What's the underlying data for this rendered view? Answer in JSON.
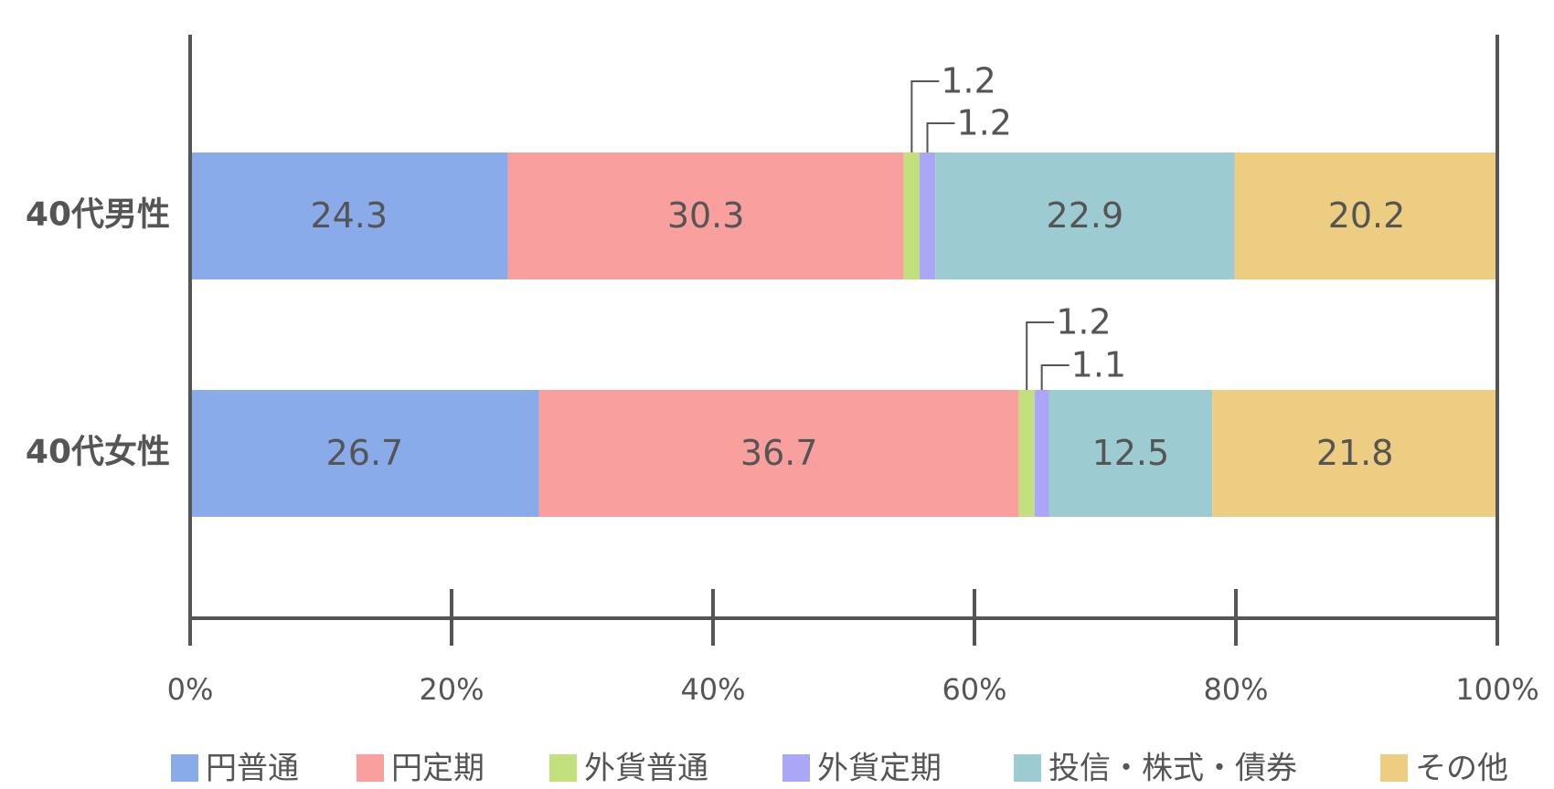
{
  "chart_data": {
    "type": "stacked_barh",
    "categories": [
      "40代男性",
      "40代女性"
    ],
    "series": [
      {
        "name": "円普通",
        "color": "#8aabea",
        "values": [
          24.3,
          26.7
        ]
      },
      {
        "name": "円定期",
        "color": "#f9a09e",
        "values": [
          30.3,
          36.7
        ]
      },
      {
        "name": "外貨普通",
        "color": "#c3e07e",
        "values": [
          1.2,
          1.2
        ]
      },
      {
        "name": "外貨定期",
        "color": "#aba6f5",
        "values": [
          1.2,
          1.1
        ]
      },
      {
        "name": "投信・株式・債券",
        "color": "#9dcbd2",
        "values": [
          22.9,
          12.5
        ]
      },
      {
        "name": "その他",
        "color": "#eccd82",
        "values": [
          20.2,
          21.8
        ]
      }
    ],
    "xlim": [
      0,
      100
    ],
    "xticks": [
      {
        "value": 0,
        "label": "0%"
      },
      {
        "value": 20,
        "label": "20%"
      },
      {
        "value": 40,
        "label": "40%"
      },
      {
        "value": 60,
        "label": "60%"
      },
      {
        "value": 80,
        "label": "80%"
      },
      {
        "value": 100,
        "label": "100%"
      }
    ],
    "legend": "bottom"
  }
}
